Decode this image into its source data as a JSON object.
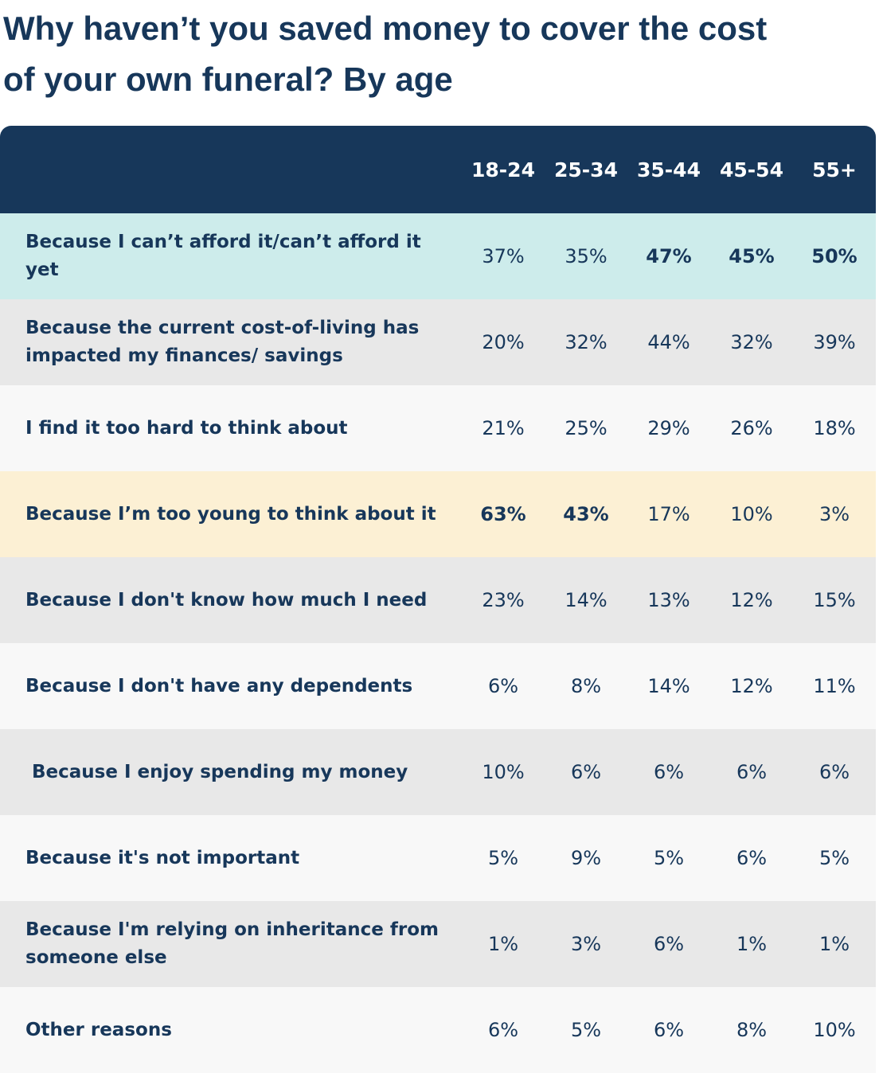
{
  "title": "Why haven’t you saved money to cover the cost of your own funeral? By age",
  "table": {
    "header_color": "#17375a",
    "columns": [
      "18-24",
      "25-34",
      "35-44",
      "45-54",
      "55+"
    ],
    "rows": [
      {
        "label": "Because I can’t afford it/can’t afford it yet",
        "cells": [
          "37%",
          "35%",
          "47%",
          "45%",
          "50%"
        ],
        "background": "#cdeceb",
        "bold": [
          2,
          3,
          4
        ]
      },
      {
        "label": "Because the current cost-of-living has impacted my finances/ savings",
        "cells": [
          "20%",
          "32%",
          "44%",
          "32%",
          "39%"
        ],
        "background": "#e8e8e8",
        "bold": []
      },
      {
        "label": "I find it too hard to think about",
        "cells": [
          "21%",
          "25%",
          "29%",
          "26%",
          "18%"
        ],
        "background": "#f8f8f8",
        "bold": []
      },
      {
        "label": "Because I’m too young to think about it",
        "cells": [
          "63%",
          "43%",
          "17%",
          "10%",
          "3%"
        ],
        "background": "#fcf0d4",
        "bold": [
          0,
          1
        ]
      },
      {
        "label": "Because I don't know how much I need",
        "cells": [
          "23%",
          "14%",
          "13%",
          "12%",
          "15%"
        ],
        "background": "#e8e8e8",
        "bold": []
      },
      {
        "label": "Because I don't have any dependents",
        "cells": [
          "6%",
          "8%",
          "14%",
          "12%",
          "11%"
        ],
        "background": "#f8f8f8",
        "bold": []
      },
      {
        "label": " Because I enjoy spending my money",
        "cells": [
          "10%",
          "6%",
          "6%",
          "6%",
          "6%"
        ],
        "background": "#e8e8e8",
        "bold": []
      },
      {
        "label": "Because it's not important",
        "cells": [
          "5%",
          "9%",
          "5%",
          "6%",
          "5%"
        ],
        "background": "#f8f8f8",
        "bold": []
      },
      {
        "label": "Because I'm relying on inheritance from someone else",
        "cells": [
          "1%",
          "3%",
          "6%",
          "1%",
          "1%"
        ],
        "background": "#e8e8e8",
        "bold": []
      },
      {
        "label": "Other reasons",
        "cells": [
          "6%",
          "5%",
          "6%",
          "8%",
          "10%"
        ],
        "background": "#f8f8f8",
        "bold": []
      }
    ]
  }
}
